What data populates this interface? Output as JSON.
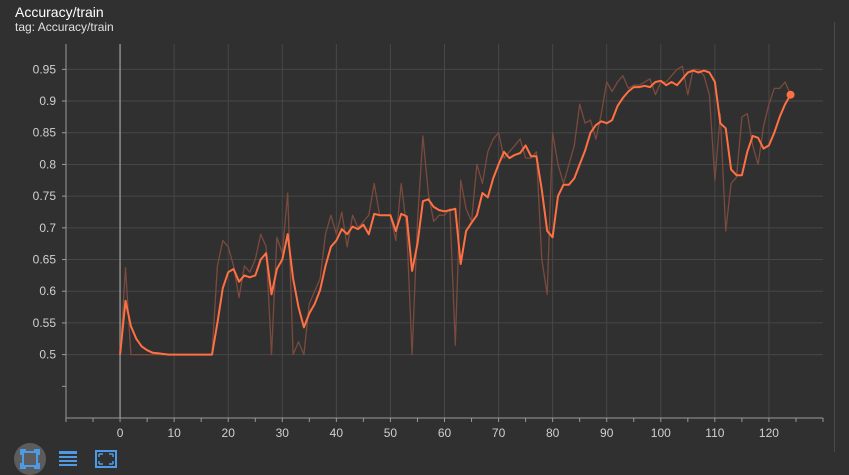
{
  "card": {
    "title": "Accuracy/train",
    "tag": "tag: Accuracy/train"
  },
  "colors": {
    "background": "#303030",
    "grid": "#474747",
    "axis": "#9a9a9a",
    "smoothed": "#ff7043",
    "raw": "#7a4a3e",
    "tick_text": "#cfcfcf",
    "icon_blue": "#4d9be6"
  },
  "toolbar": {
    "icons": [
      "fit-domain-icon",
      "data-table-icon",
      "expand-chart-icon"
    ]
  },
  "chart_data": {
    "type": "line",
    "title": "Accuracy/train",
    "xlabel": "",
    "ylabel": "",
    "xlim": [
      -10,
      130
    ],
    "ylim": [
      0.4,
      0.99
    ],
    "xticks": [
      0,
      10,
      20,
      30,
      40,
      50,
      60,
      70,
      80,
      90,
      100,
      110,
      120
    ],
    "yticks": [
      0.5,
      0.55,
      0.6,
      0.65,
      0.7,
      0.75,
      0.8,
      0.85,
      0.9,
      0.95
    ],
    "grid": true,
    "legend": "none",
    "series": [
      {
        "role": "raw",
        "x": [
          0,
          1,
          2,
          3,
          4,
          5,
          6,
          7,
          8,
          9,
          10,
          11,
          12,
          13,
          14,
          15,
          16,
          17,
          18,
          19,
          20,
          21,
          22,
          23,
          24,
          25,
          26,
          27,
          28,
          29,
          30,
          31,
          32,
          33,
          34,
          35,
          36,
          37,
          38,
          39,
          40,
          41,
          42,
          43,
          44,
          45,
          46,
          47,
          48,
          49,
          50,
          51,
          52,
          53,
          54,
          55,
          56,
          57,
          58,
          59,
          60,
          61,
          62,
          63,
          64,
          65,
          66,
          67,
          68,
          69,
          70,
          71,
          72,
          73,
          74,
          75,
          76,
          77,
          78,
          79,
          80,
          81,
          82,
          83,
          84,
          85,
          86,
          87,
          88,
          89,
          90,
          91,
          92,
          93,
          94,
          95,
          96,
          97,
          98,
          99,
          100,
          101,
          102,
          103,
          104,
          105,
          106,
          107,
          108,
          109,
          110,
          111,
          112,
          113,
          114,
          115,
          116,
          117,
          118,
          119,
          120,
          121,
          122,
          123,
          124
        ],
        "y": [
          0.5,
          0.637,
          0.5,
          0.5,
          0.5,
          0.5,
          0.5,
          0.5,
          0.5,
          0.5,
          0.5,
          0.5,
          0.5,
          0.5,
          0.5,
          0.5,
          0.5,
          0.5,
          0.64,
          0.68,
          0.67,
          0.64,
          0.59,
          0.64,
          0.63,
          0.65,
          0.69,
          0.67,
          0.5,
          0.685,
          0.66,
          0.755,
          0.5,
          0.52,
          0.5,
          0.58,
          0.6,
          0.62,
          0.69,
          0.72,
          0.69,
          0.725,
          0.67,
          0.72,
          0.7,
          0.71,
          0.72,
          0.77,
          0.72,
          0.72,
          0.72,
          0.68,
          0.77,
          0.7,
          0.5,
          0.71,
          0.845,
          0.755,
          0.71,
          0.72,
          0.72,
          0.73,
          0.515,
          0.775,
          0.73,
          0.71,
          0.8,
          0.77,
          0.82,
          0.84,
          0.85,
          0.81,
          0.82,
          0.83,
          0.84,
          0.81,
          0.81,
          0.82,
          0.65,
          0.595,
          0.85,
          0.8,
          0.77,
          0.8,
          0.83,
          0.895,
          0.865,
          0.87,
          0.84,
          0.88,
          0.93,
          0.915,
          0.93,
          0.94,
          0.92,
          0.925,
          0.925,
          0.93,
          0.935,
          0.91,
          0.93,
          0.93,
          0.94,
          0.95,
          0.955,
          0.91,
          0.95,
          0.95,
          0.94,
          0.91,
          0.775,
          0.88,
          0.695,
          0.77,
          0.78,
          0.875,
          0.88,
          0.83,
          0.8,
          0.86,
          0.895,
          0.92,
          0.92,
          0.93,
          0.91
        ]
      },
      {
        "role": "smoothed",
        "x": [
          0,
          1,
          2,
          3,
          4,
          5,
          6,
          7,
          8,
          9,
          10,
          11,
          12,
          13,
          14,
          15,
          16,
          17,
          18,
          19,
          20,
          21,
          22,
          23,
          24,
          25,
          26,
          27,
          28,
          29,
          30,
          31,
          32,
          33,
          34,
          35,
          36,
          37,
          38,
          39,
          40,
          41,
          42,
          43,
          44,
          45,
          46,
          47,
          48,
          49,
          50,
          51,
          52,
          53,
          54,
          55,
          56,
          57,
          58,
          59,
          60,
          61,
          62,
          63,
          64,
          65,
          66,
          67,
          68,
          69,
          70,
          71,
          72,
          73,
          74,
          75,
          76,
          77,
          78,
          79,
          80,
          81,
          82,
          83,
          84,
          85,
          86,
          87,
          88,
          89,
          90,
          91,
          92,
          93,
          94,
          95,
          96,
          97,
          98,
          99,
          100,
          101,
          102,
          103,
          104,
          105,
          106,
          107,
          108,
          109,
          110,
          111,
          112,
          113,
          114,
          115,
          116,
          117,
          118,
          119,
          120,
          121,
          122,
          123,
          124
        ],
        "y": [
          0.5,
          0.585,
          0.545,
          0.525,
          0.513,
          0.507,
          0.503,
          0.502,
          0.501,
          0.5,
          0.5,
          0.5,
          0.5,
          0.5,
          0.5,
          0.5,
          0.5,
          0.5,
          0.55,
          0.605,
          0.63,
          0.635,
          0.615,
          0.625,
          0.622,
          0.625,
          0.65,
          0.66,
          0.595,
          0.635,
          0.65,
          0.69,
          0.62,
          0.575,
          0.543,
          0.565,
          0.58,
          0.602,
          0.64,
          0.67,
          0.68,
          0.698,
          0.69,
          0.702,
          0.698,
          0.705,
          0.69,
          0.722,
          0.72,
          0.72,
          0.72,
          0.695,
          0.722,
          0.718,
          0.632,
          0.675,
          0.742,
          0.745,
          0.733,
          0.728,
          0.726,
          0.728,
          0.73,
          0.643,
          0.695,
          0.708,
          0.72,
          0.755,
          0.748,
          0.778,
          0.8,
          0.82,
          0.81,
          0.815,
          0.818,
          0.83,
          0.813,
          0.813,
          0.76,
          0.695,
          0.685,
          0.75,
          0.768,
          0.768,
          0.778,
          0.8,
          0.822,
          0.85,
          0.862,
          0.868,
          0.865,
          0.87,
          0.892,
          0.905,
          0.915,
          0.922,
          0.922,
          0.924,
          0.922,
          0.93,
          0.932,
          0.925,
          0.93,
          0.925,
          0.935,
          0.945,
          0.948,
          0.945,
          0.948,
          0.945,
          0.93,
          0.865,
          0.857,
          0.792,
          0.783,
          0.783,
          0.82,
          0.845,
          0.842,
          0.825,
          0.83,
          0.85,
          0.875,
          0.895,
          0.91
        ]
      }
    ]
  }
}
